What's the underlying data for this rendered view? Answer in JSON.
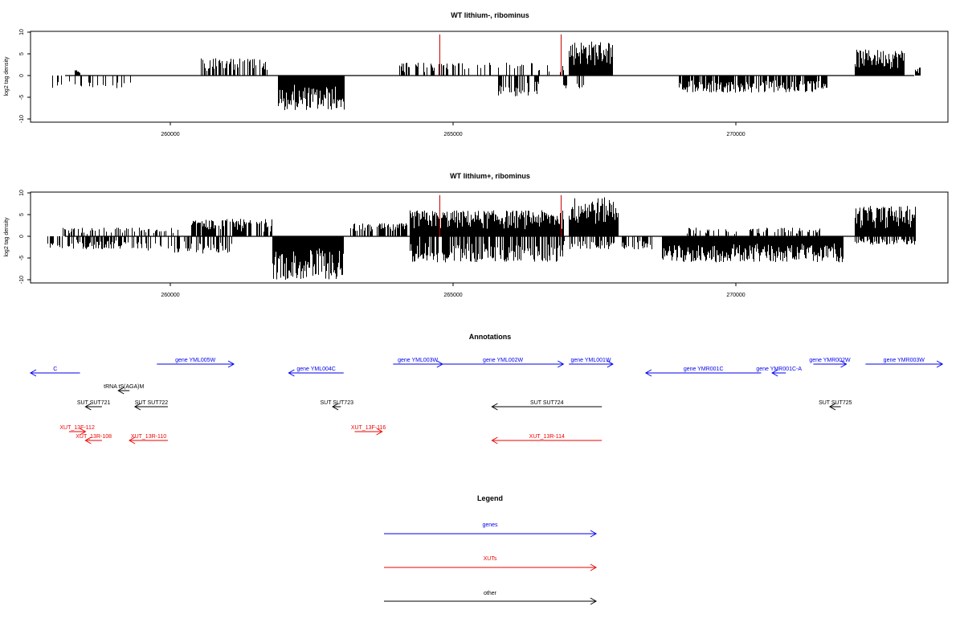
{
  "chart_data": [
    {
      "type": "bar",
      "title": "WT lithium-, ribominus",
      "xlabel": "",
      "ylabel": "log2 tag density",
      "xlim": [
        257100,
        273800
      ],
      "ylim": [
        -10,
        10
      ],
      "x_ticks": [
        "260000",
        "265000",
        "270000"
      ],
      "y_ticks": [
        "10",
        "5",
        "0",
        "-5",
        "-10"
      ],
      "bar_color": "#000000",
      "marker_color": "#cc0000",
      "markers": [
        {
          "x": 264550,
          "y": 9.5
        },
        {
          "x": 266750,
          "y": 9.5
        }
      ],
      "regions": [
        {
          "start": 257400,
          "end": 259000,
          "sign": -1,
          "max": 3,
          "density": 0.25
        },
        {
          "start": 257900,
          "end": 258000,
          "sign": 1,
          "max": 1.5,
          "density": 1
        },
        {
          "start": 260200,
          "end": 261400,
          "sign": 1,
          "max": 4,
          "density": 0.55
        },
        {
          "start": 261600,
          "end": 262800,
          "sign": -1,
          "max": 8,
          "density": 1
        },
        {
          "start": 263800,
          "end": 265000,
          "sign": 1,
          "max": 3,
          "density": 0.35
        },
        {
          "start": 265000,
          "end": 266800,
          "sign": 1,
          "max": 3,
          "density": 0.25
        },
        {
          "start": 265600,
          "end": 266400,
          "sign": -1,
          "max": 5,
          "density": 0.4
        },
        {
          "start": 266900,
          "end": 267700,
          "sign": 1,
          "max": 8,
          "density": 1
        },
        {
          "start": 266700,
          "end": 267200,
          "sign": -1,
          "max": 3,
          "density": 0.3
        },
        {
          "start": 268900,
          "end": 271600,
          "sign": -1,
          "max": 4,
          "density": 0.8
        },
        {
          "start": 272100,
          "end": 273000,
          "sign": 1,
          "max": 6,
          "density": 1
        },
        {
          "start": 273200,
          "end": 273300,
          "sign": 1,
          "max": 2,
          "density": 1
        }
      ]
    },
    {
      "type": "bar",
      "title": "WT lithium+, ribominus",
      "xlabel": "",
      "ylabel": "log2 tag density",
      "xlim": [
        257100,
        273800
      ],
      "ylim": [
        -10,
        10
      ],
      "x_ticks": [
        "260000",
        "265000",
        "270000"
      ],
      "y_ticks": [
        "10",
        "5",
        "0",
        "-5",
        "-10"
      ],
      "bar_color": "#000000",
      "marker_color": "#cc0000",
      "markers": [
        {
          "x": 264550,
          "y": 9.5
        },
        {
          "x": 266750,
          "y": 9.5
        }
      ],
      "regions": [
        {
          "start": 257400,
          "end": 259200,
          "sign": -1,
          "max": 3,
          "density": 0.5
        },
        {
          "start": 257600,
          "end": 259800,
          "sign": 1,
          "max": 2,
          "density": 0.3
        },
        {
          "start": 259200,
          "end": 260800,
          "sign": -1,
          "max": 4,
          "density": 0.4
        },
        {
          "start": 260000,
          "end": 261500,
          "sign": 1,
          "max": 4,
          "density": 0.7
        },
        {
          "start": 261500,
          "end": 262800,
          "sign": -1,
          "max": 10,
          "density": 1
        },
        {
          "start": 262900,
          "end": 264000,
          "sign": 1,
          "max": 3,
          "density": 0.6
        },
        {
          "start": 264000,
          "end": 266800,
          "sign": 1,
          "max": 6,
          "density": 1
        },
        {
          "start": 264000,
          "end": 266800,
          "sign": -1,
          "max": 6,
          "density": 0.7
        },
        {
          "start": 266900,
          "end": 267800,
          "sign": 1,
          "max": 9,
          "density": 1
        },
        {
          "start": 266800,
          "end": 268500,
          "sign": -1,
          "max": 3,
          "density": 0.5
        },
        {
          "start": 268600,
          "end": 271900,
          "sign": -1,
          "max": 6,
          "density": 1
        },
        {
          "start": 269000,
          "end": 271500,
          "sign": 1,
          "max": 2,
          "density": 0.3
        },
        {
          "start": 272100,
          "end": 273200,
          "sign": 1,
          "max": 7,
          "density": 1
        },
        {
          "start": 272100,
          "end": 273200,
          "sign": -1,
          "max": 2,
          "density": 0.6
        }
      ]
    }
  ],
  "annotations": {
    "title": "Annotations",
    "genes": [
      {
        "label": "C",
        "start": 257100,
        "end": 258000,
        "row": 1
      },
      {
        "label": "gene YML005W",
        "start": 259400,
        "end": 260800,
        "row": 0
      },
      {
        "label": "gene YML004C",
        "start": 261800,
        "end": 262800,
        "row": 1
      },
      {
        "label": "gene YML003W",
        "start": 263700,
        "end": 264600,
        "row": 0
      },
      {
        "label": "gene YML002W",
        "start": 264600,
        "end": 266800,
        "row": 0
      },
      {
        "label": "gene YML001W",
        "start": 266900,
        "end": 267700,
        "row": 0
      },
      {
        "label": "gene YMR001C",
        "start": 268300,
        "end": 270400,
        "row": 1
      },
      {
        "label": "gene YMR001C-A",
        "start": 270600,
        "end": 270850,
        "row": 1
      },
      {
        "label": "gene YMR002W",
        "start": 271350,
        "end": 271950,
        "row": 0
      },
      {
        "label": "gene YMR003W",
        "start": 272300,
        "end": 273700,
        "row": 0
      }
    ],
    "other": [
      {
        "label": "tRNA tS(AGA)M",
        "start": 258750,
        "end": 258850,
        "row": 2
      },
      {
        "label": "SUT SUT721",
        "start": 258100,
        "end": 258400,
        "row": 3
      },
      {
        "label": "SUT SUT722",
        "start": 259000,
        "end": 259600,
        "row": 3
      },
      {
        "label": "SUT SUT723",
        "start": 262600,
        "end": 262750,
        "row": 3
      },
      {
        "label": "SUT SUT724",
        "start": 265500,
        "end": 267500,
        "row": 3
      },
      {
        "label": "SUT SUT725",
        "start": 271650,
        "end": 271850,
        "row": 3
      }
    ],
    "xuts": [
      {
        "label": "XUT_13F-112",
        "start": 257800,
        "end": 258100,
        "row": 4,
        "dir": 1
      },
      {
        "label": "XUT_13R-108",
        "start": 258100,
        "end": 258400,
        "row": 5,
        "dir": -1
      },
      {
        "label": "XUT_13R-110",
        "start": 258900,
        "end": 259600,
        "row": 5,
        "dir": -1
      },
      {
        "label": "XUT_13F-116",
        "start": 263000,
        "end": 263500,
        "row": 4,
        "dir": 1
      },
      {
        "label": "XUT_13R-114",
        "start": 265500,
        "end": 267500,
        "row": 5,
        "dir": -1
      }
    ]
  },
  "legend": {
    "title": "Legend",
    "items": [
      {
        "label": "genes",
        "color": "#0000ee"
      },
      {
        "label": "XUTs",
        "color": "#ee0000"
      },
      {
        "label": "other",
        "color": "#000000"
      }
    ]
  }
}
